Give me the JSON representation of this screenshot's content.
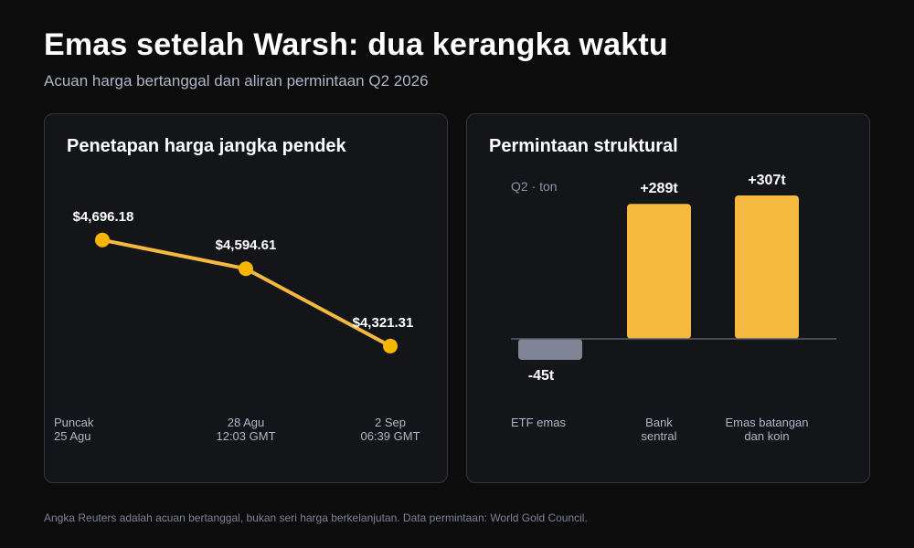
{
  "header": {
    "title": "Emas setelah Warsh: dua kerangka waktu",
    "subtitle": "Acuan harga bertanggal dan aliran permintaan Q2 2026"
  },
  "colors": {
    "accent": "#f5b93f",
    "line": "#f5b93f",
    "negative_bar": "#7f8596",
    "background": "#0c0c0d",
    "panel": "#141519"
  },
  "chart_data": [
    {
      "type": "line",
      "title": "Penetapan harga jangka pendek",
      "x": [
        "Puncak 25 Agu",
        "28 Agu 12:03 GMT",
        "2 Sep 06:39 GMT"
      ],
      "x_tick_labels": [
        [
          "Puncak",
          "25 Agu"
        ],
        [
          "28 Agu",
          "12:03 GMT"
        ],
        [
          "2 Sep",
          "06:39 GMT"
        ]
      ],
      "values": [
        4696.18,
        4594.61,
        4321.31
      ],
      "data_labels": [
        "$4,696.18",
        "$4,594.61",
        "$4,321.31"
      ],
      "ylim": [
        4250,
        4760
      ],
      "grid": false,
      "xlabel": "",
      "ylabel": ""
    },
    {
      "type": "bar",
      "title": "Permintaan struktural",
      "unit_label": "Q2 · ton",
      "categories": [
        "ETF emas",
        "Bank sentral",
        "Emas batangan dan koin"
      ],
      "category_tick_labels": [
        [
          "ETF emas"
        ],
        [
          "Bank",
          "sentral"
        ],
        [
          "Emas batangan",
          "dan koin"
        ]
      ],
      "values": [
        -45,
        289,
        307
      ],
      "data_labels": [
        "-45t",
        "+289t",
        "+307t"
      ],
      "ylim": [
        -80,
        340
      ],
      "grid": false,
      "xlabel": "",
      "ylabel": ""
    }
  ],
  "footnote": "Angka Reuters adalah acuan bertanggal, bukan seri harga berkelanjutan. Data permintaan: World Gold Council."
}
